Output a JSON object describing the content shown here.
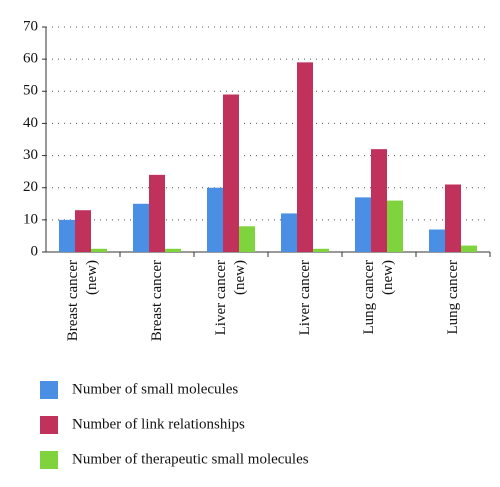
{
  "chart_data": {
    "type": "bar",
    "categories": [
      "Breast cancer (new)",
      "Breast cancer",
      "Liver cancer (new)",
      "Liver cancer",
      "Lung cancer (new)",
      "Lung cancer"
    ],
    "series": [
      {
        "name": "Number of small molecules",
        "color": "#4a8fe3",
        "values": [
          10,
          15,
          20,
          12,
          17,
          7
        ]
      },
      {
        "name": "Number of link relationships",
        "color": "#c0325c",
        "values": [
          13,
          24,
          49,
          59,
          32,
          21
        ]
      },
      {
        "name": "Number of therapeutic small molecules",
        "color": "#7fd43e",
        "values": [
          1,
          1,
          8,
          1,
          16,
          2
        ]
      }
    ],
    "ylim": [
      0,
      70
    ],
    "yticks": [
      0,
      10,
      20,
      30,
      40,
      50,
      60,
      70
    ],
    "grid": true
  }
}
